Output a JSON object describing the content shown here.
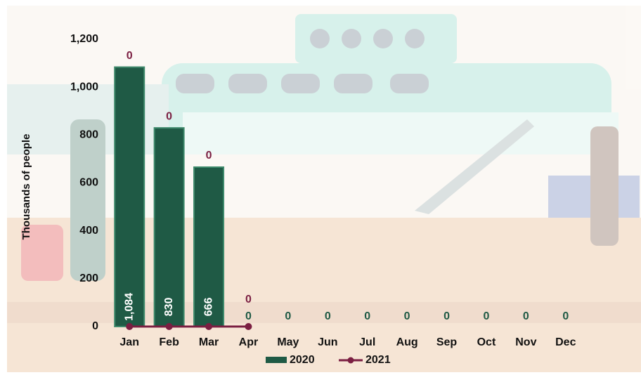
{
  "chart_data": {
    "type": "bar",
    "y_label": "Thousands of people",
    "categories": [
      "Jan",
      "Feb",
      "Mar",
      "Apr",
      "May",
      "Jun",
      "Jul",
      "Aug",
      "Sep",
      "Oct",
      "Nov",
      "Dec"
    ],
    "series": [
      {
        "name": "2020",
        "type": "bar",
        "color": "#1f5a45",
        "values": [
          1084,
          830,
          666,
          0,
          0,
          0,
          0,
          0,
          0,
          0,
          0,
          0
        ],
        "value_labels": [
          "1,084",
          "830",
          "666",
          "0",
          "0",
          "0",
          "0",
          "0",
          "0",
          "0",
          "0",
          "0"
        ]
      },
      {
        "name": "2021",
        "type": "line",
        "color": "#7b1f42",
        "values": [
          0,
          0,
          0,
          0,
          null,
          null,
          null,
          null,
          null,
          null,
          null,
          null
        ]
      }
    ],
    "ylim": [
      0,
      1200
    ],
    "yticks": [
      0,
      200,
      400,
      600,
      800,
      {
        "value": 1000,
        "label": "1,000"
      },
      {
        "value": 1200,
        "label": "1,200"
      }
    ],
    "grid": false,
    "legend": "bottom"
  }
}
